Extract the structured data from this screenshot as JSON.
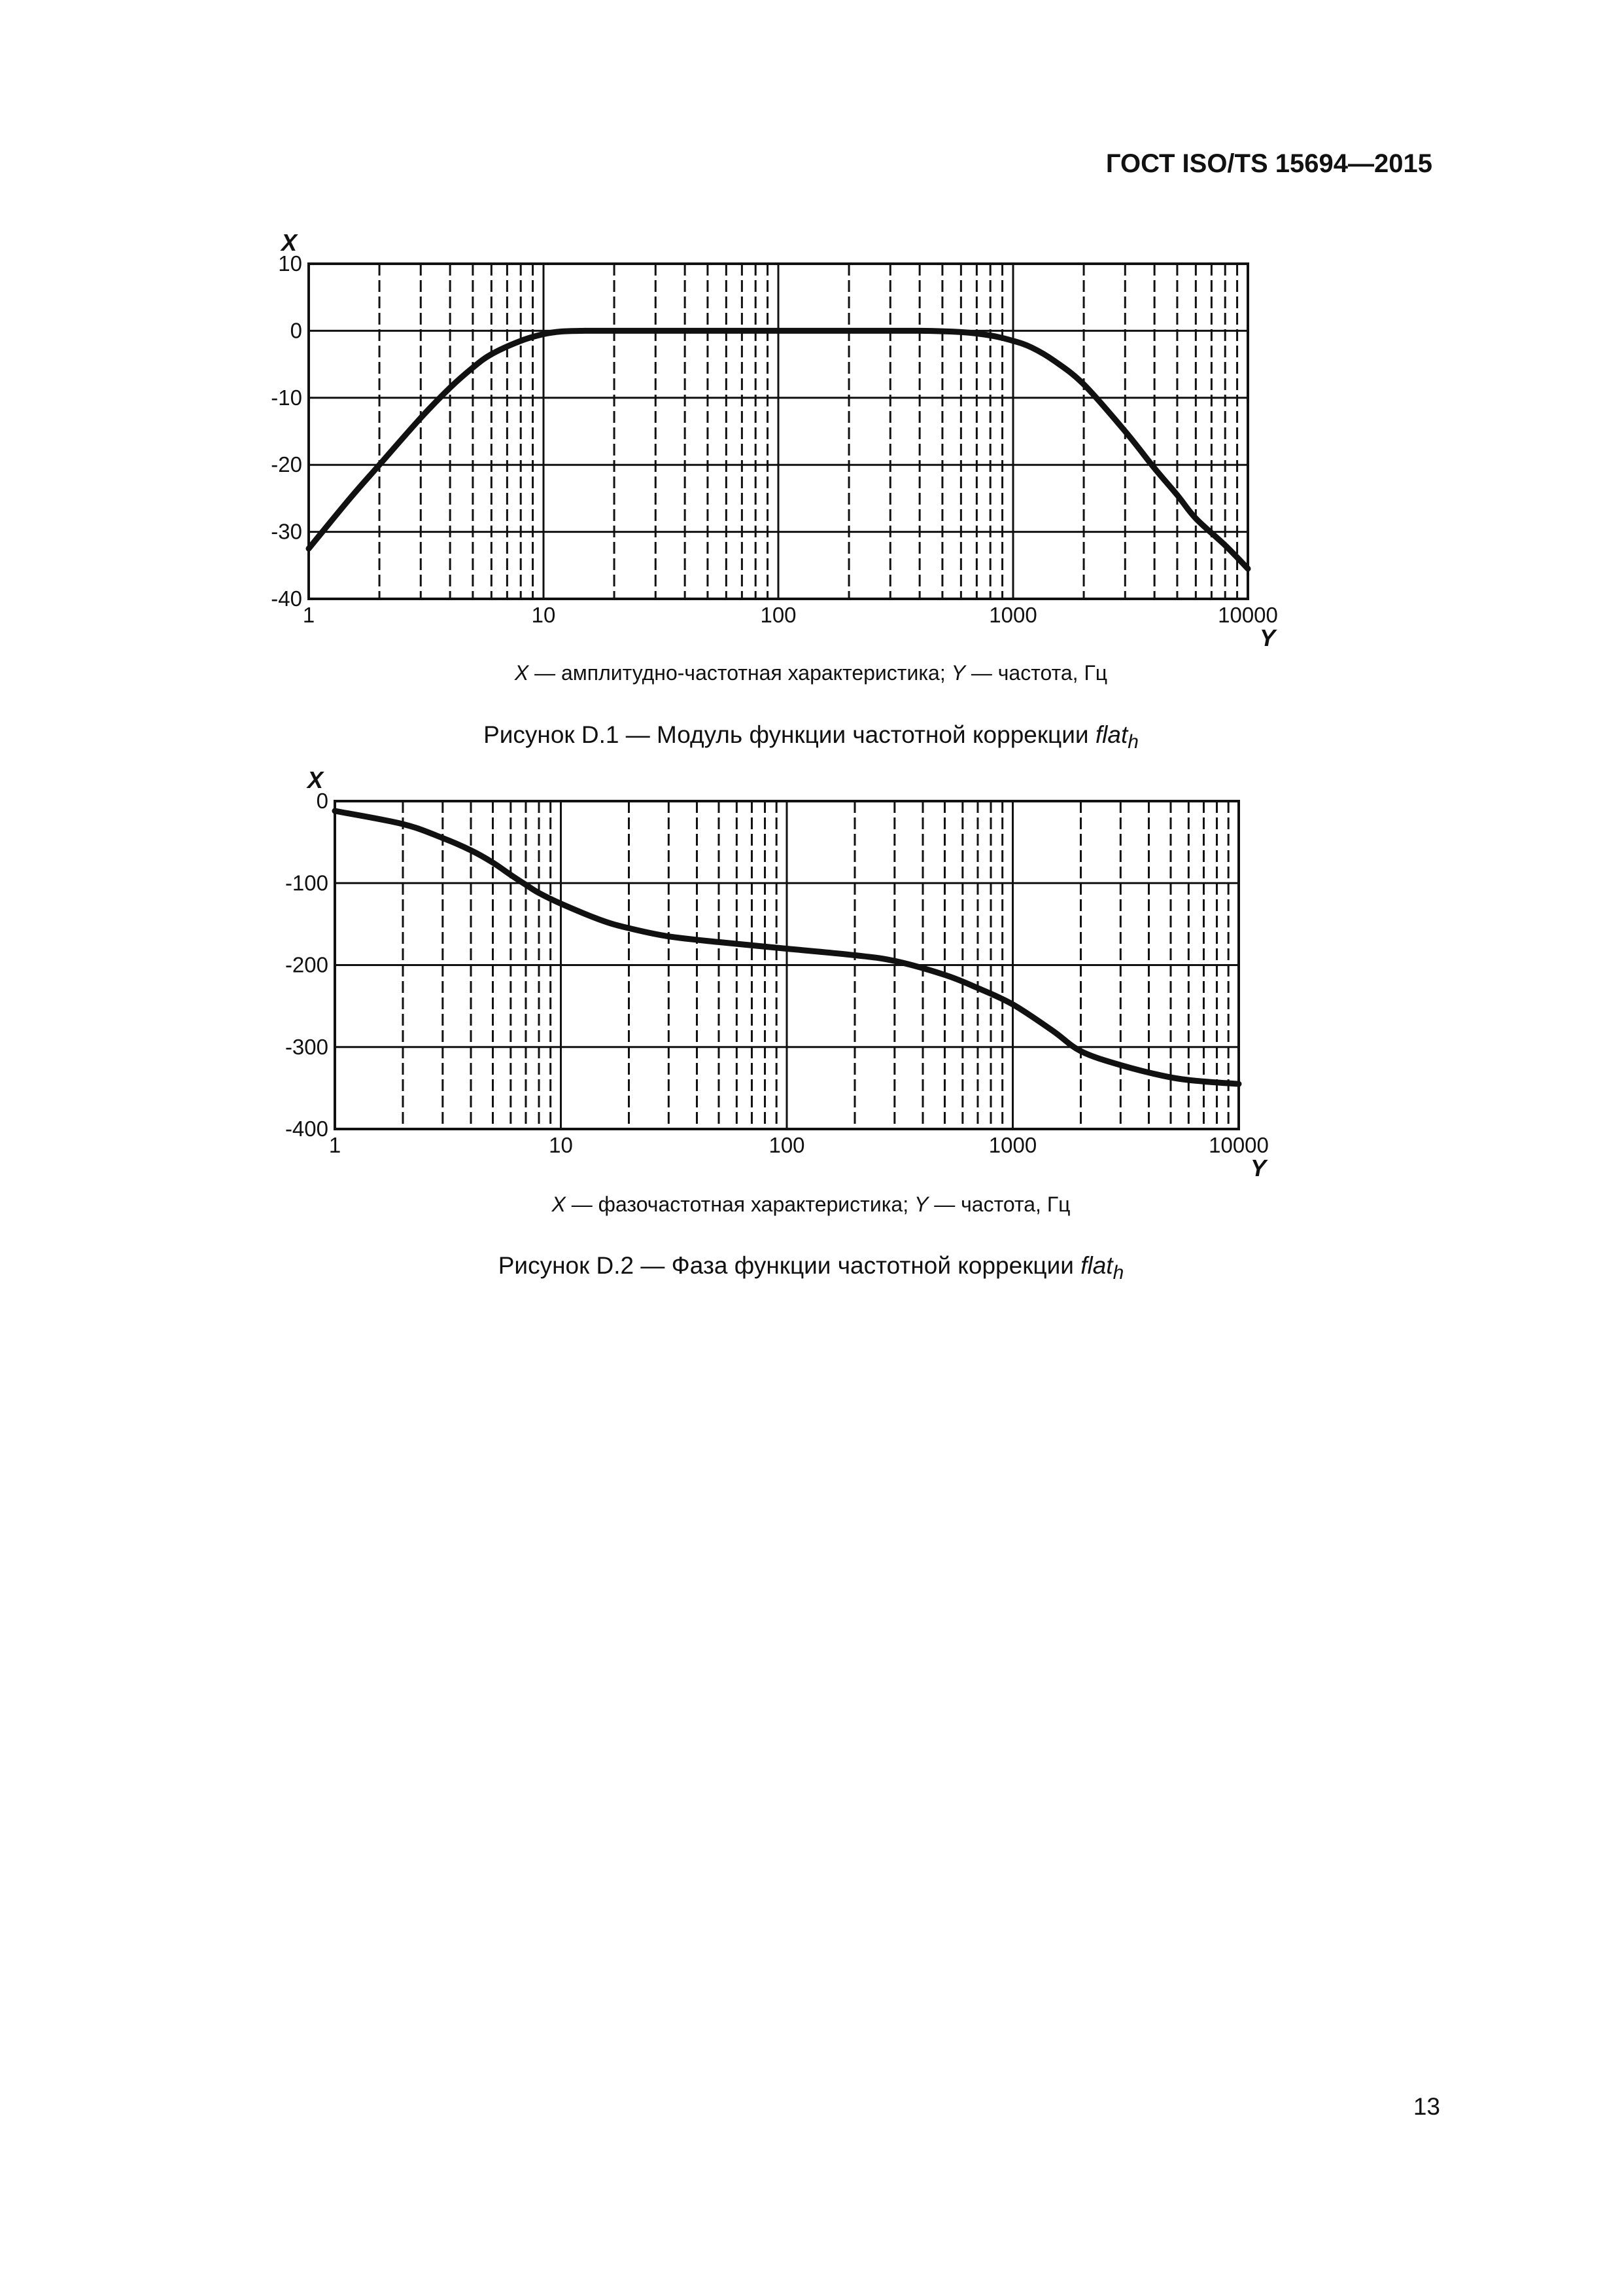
{
  "header": {
    "standard": "ГОСТ ISO/TS 15694—2015"
  },
  "figures": [
    {
      "legend": {
        "x_symbol": "X",
        "x_text": " — амплитудно-частотная характеристика; ",
        "y_symbol": "Y",
        "y_text": " — частота, Гц"
      },
      "caption": {
        "prefix": "Рисунок D.1 — Модуль функции частотной коррекции ",
        "name": "flat",
        "subscript": "h"
      }
    },
    {
      "legend": {
        "x_symbol": "X",
        "x_text": " — фазочастотная характеристика; ",
        "y_symbol": "Y",
        "y_text": " — частота, Гц"
      },
      "caption": {
        "prefix": "Рисунок D.2 — Фаза функции частотной коррекции ",
        "name": "flat",
        "subscript": "h"
      }
    }
  ],
  "chart_data": [
    {
      "type": "line",
      "xscale": "log",
      "xlim": [
        1,
        10000
      ],
      "ylim": [
        -40,
        10
      ],
      "x_ticks": [
        "1",
        "10",
        "100",
        "1000",
        "10000"
      ],
      "y_ticks": [
        "10",
        "0",
        "-10",
        "-20",
        "-30",
        "-40"
      ],
      "xlabel": "Y",
      "ylabel": "X",
      "grid": true,
      "series": [
        {
          "x": [
            1,
            1.5,
            2,
            3,
            4,
            5,
            6,
            8,
            10,
            12,
            15,
            20,
            50,
            100,
            200,
            400,
            600,
            800,
            1000,
            1200,
            1500,
            2000,
            3000,
            4000,
            5000,
            6000,
            8000,
            10000
          ],
          "y": [
            -32.5,
            -25,
            -20,
            -13,
            -8.5,
            -5.5,
            -3.5,
            -1.5,
            -0.5,
            -0.1,
            0,
            0,
            0,
            0,
            0,
            0,
            -0.2,
            -0.7,
            -1.5,
            -2.5,
            -4.5,
            -8,
            -15,
            -20.5,
            -24.5,
            -28,
            -32,
            -35.5
          ]
        }
      ]
    },
    {
      "type": "line",
      "xscale": "log",
      "xlim": [
        1,
        10000
      ],
      "ylim": [
        -400,
        0
      ],
      "x_ticks": [
        "1",
        "10",
        "100",
        "1000",
        "10000"
      ],
      "y_ticks": [
        "0",
        "-100",
        "-200",
        "-300",
        "-400"
      ],
      "xlabel": "Y",
      "ylabel": "X",
      "grid": true,
      "series": [
        {
          "x": [
            1,
            2,
            3,
            4,
            5,
            6,
            7,
            8,
            10,
            15,
            20,
            30,
            50,
            100,
            200,
            300,
            500,
            700,
            1000,
            1500,
            2000,
            3000,
            5000,
            7000,
            10000
          ],
          "y": [
            -12,
            -28,
            -45,
            -60,
            -75,
            -90,
            -102,
            -112,
            -125,
            -145,
            -155,
            -165,
            -172,
            -180,
            -188,
            -195,
            -212,
            -228,
            -248,
            -280,
            -305,
            -322,
            -337,
            -342,
            -345
          ]
        }
      ]
    }
  ]
}
